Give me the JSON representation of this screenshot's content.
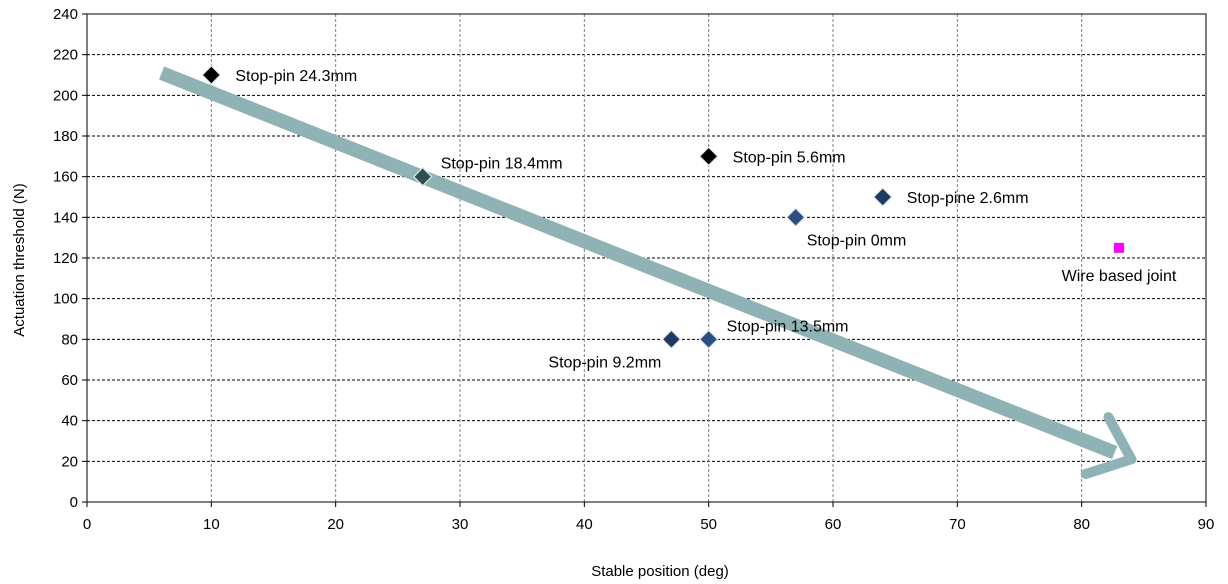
{
  "chart_data": {
    "type": "scatter",
    "xlabel": "Stable position (deg)",
    "ylabel": "Actuation threshold  (N)",
    "xlim": [
      0,
      90
    ],
    "ylim": [
      0,
      240
    ],
    "xticks": [
      0,
      10,
      20,
      30,
      40,
      50,
      60,
      70,
      80,
      90
    ],
    "yticks": [
      0,
      20,
      40,
      60,
      80,
      100,
      120,
      140,
      160,
      180,
      200,
      220,
      240
    ],
    "grid": "dashed, both axes",
    "points": [
      {
        "label": "Stop-pin 24.3mm",
        "x": 10,
        "y": 210,
        "marker": "diamond",
        "color": "#000000",
        "label_side": "right"
      },
      {
        "label": "Stop-pin 18.4mm",
        "x": 27,
        "y": 160,
        "marker": "diamond",
        "color": "#2f4f4f",
        "label_side": "above-right"
      },
      {
        "label": "Stop-pin 5.6mm",
        "x": 50,
        "y": 170,
        "marker": "diamond",
        "color": "#000000",
        "label_side": "right"
      },
      {
        "label": "Stop-pine 2.6mm",
        "x": 64,
        "y": 150,
        "marker": "diamond",
        "color": "#1f3a60",
        "label_side": "right"
      },
      {
        "label": "Stop-pin 0mm",
        "x": 57,
        "y": 140,
        "marker": "diamond",
        "color": "#2a4f80",
        "label_side": "below-right"
      },
      {
        "label": "Wire based joint",
        "x": 83,
        "y": 125,
        "marker": "square",
        "color": "#ff00ff",
        "label_side": "below"
      },
      {
        "label": "Stop-pin 13.5mm",
        "x": 50,
        "y": 80,
        "marker": "diamond",
        "color": "#2a4f80",
        "label_side": "above-right"
      },
      {
        "label": "Stop-pin 9.2mm",
        "x": 47,
        "y": 80,
        "marker": "diamond",
        "color": "#1f3a60",
        "label_side": "below-left"
      }
    ],
    "trend_arrow": {
      "from": [
        6,
        211
      ],
      "to": [
        84,
        21
      ],
      "color": "#8fb2b6"
    }
  }
}
